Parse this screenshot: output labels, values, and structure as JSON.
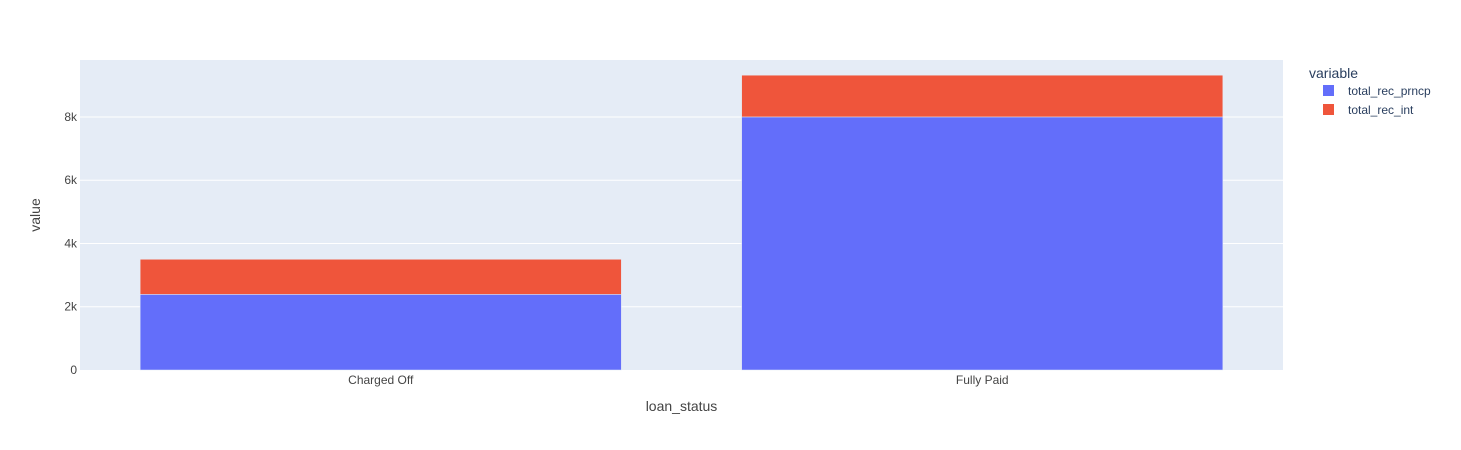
{
  "chart_data": {
    "type": "bar",
    "barmode": "stack",
    "categories": [
      "Charged Off",
      "Fully Paid"
    ],
    "series": [
      {
        "name": "total_rec_prncp",
        "color": "#636efa",
        "values": [
          2390,
          8000
        ]
      },
      {
        "name": "total_rec_int",
        "color": "#ef553b",
        "values": [
          1110,
          1320
        ]
      }
    ],
    "xlabel": "loan_status",
    "ylabel": "value",
    "ylim": [
      0,
      9800
    ],
    "yticks": [
      0,
      2000,
      4000,
      6000,
      8000
    ],
    "ytick_labels": [
      "0",
      "2k",
      "4k",
      "6k",
      "8k"
    ],
    "grid": true,
    "legend": {
      "title": "variable",
      "placement": "top-right"
    },
    "colors": {
      "plot_bg": "#e5ecf6",
      "grid": "#ffffff"
    }
  }
}
